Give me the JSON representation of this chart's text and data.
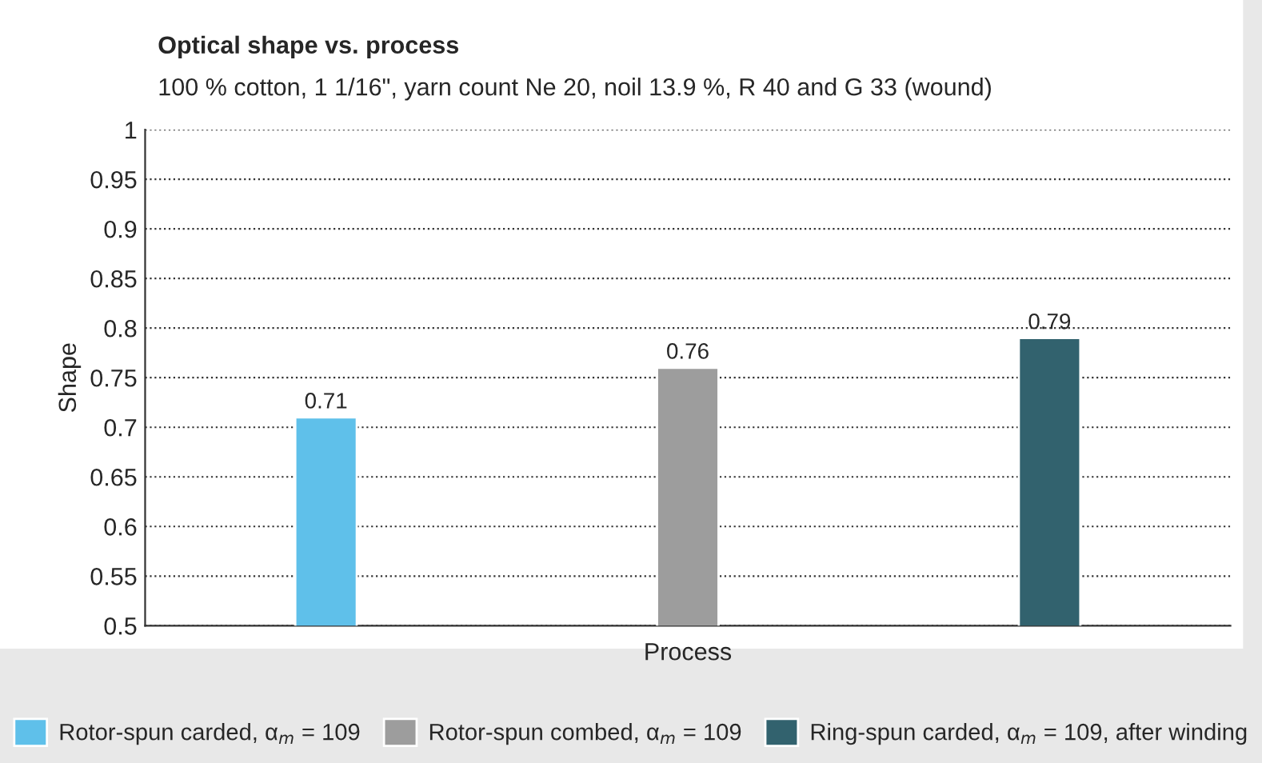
{
  "chart_data": {
    "type": "bar",
    "title": "Optical shape vs. process",
    "subtitle": "100 % cotton, 1 1/16\", yarn count Ne 20, noil 13.9 %, R 40 and G 33 (wound)",
    "xlabel": "Process",
    "ylabel": "Shape",
    "categories": [
      null,
      null,
      null
    ],
    "series": [
      {
        "name": "Rotor-spun carded, α$_{m}$ = 109",
        "color": "#5fc0ea",
        "values": [
          0.71,
          null,
          null
        ]
      },
      {
        "name": "Rotor-spun combed, α$_{m}$ = 109",
        "color": "#9d9d9d",
        "values": [
          null,
          0.76,
          null
        ]
      },
      {
        "name": "Ring-spun carded, α$_{m}$ = 109, after winding",
        "color": "#32626e",
        "values": [
          null,
          null,
          0.79
        ]
      }
    ],
    "ylim": [
      0.5,
      1
    ],
    "yticks": [
      0.5,
      0.55,
      0.6,
      0.65,
      0.7,
      0.75,
      0.8,
      0.85,
      0.9,
      0.95,
      1
    ],
    "grid": "y",
    "legend": "bottom",
    "data_labels": true
  }
}
